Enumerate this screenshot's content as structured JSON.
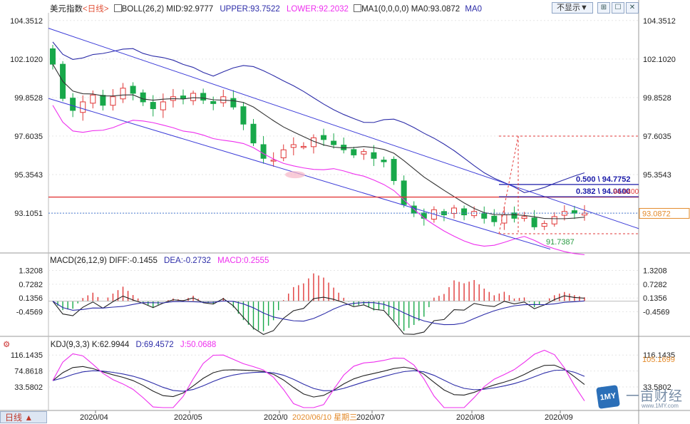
{
  "chart_data": {
    "type": "candlestick",
    "instrument": "美元指数",
    "period_tag": "<日线>",
    "indicators": {
      "boll": {
        "label": "BOLL(26,2)",
        "mid": "MID:92.9777",
        "upper": "UPPER:93.7522",
        "lower": "LOWER:92.2032"
      },
      "ma": {
        "label": "MA1(0,0,0,0)",
        "ma0": "MA0:93.0872",
        "ma0_short": "MA0"
      }
    },
    "toolbar": {
      "hide_label": "不显示▼",
      "btn1": "⊞",
      "btn2": "☐",
      "btn3": "✕"
    },
    "price_axis": {
      "ticks": [
        "104.3512",
        "102.1020",
        "99.8528",
        "97.6035",
        "95.3543",
        "93.1051"
      ],
      "tick_values": [
        104.3512,
        102.102,
        99.8528,
        97.6035,
        95.3543,
        93.1051
      ],
      "ylim": [
        90.9,
        104.8
      ]
    },
    "current_price": "93.0872",
    "annotations": {
      "fib_0500": "0.500 \\ 94.7752",
      "fib_0382": "0.382 \\ 94.0600",
      "overlap": "94.0400",
      "low_label": "91.7387"
    },
    "x_axis": {
      "labels": [
        "2020/04",
        "2020/05",
        "2020/0",
        "2020/07",
        "2020/08",
        "2020/09"
      ],
      "crosshair_label": "2020/06/10 星期三"
    },
    "close_path": [
      101.8,
      99.8,
      99.1,
      99.6,
      100.0,
      99.4,
      99.9,
      100.4,
      100.1,
      99.6,
      99.2,
      99.6,
      99.9,
      99.8,
      100.1,
      99.7,
      99.5,
      99.9,
      99.3,
      98.3,
      97.2,
      96.3,
      96.2,
      96.8,
      97.1,
      97.0,
      97.5,
      97.4,
      97.1,
      96.8,
      96.5,
      96.7,
      96.3,
      96.1,
      95.0,
      93.6,
      93.1,
      92.8,
      93.3,
      93.0,
      93.4,
      93.0,
      93.2,
      92.8,
      92.6,
      93.0,
      92.8,
      92.9,
      92.3,
      92.5,
      92.9,
      93.2,
      93.1,
      93.1
    ],
    "macd": {
      "label": "MACD(26,12,9)",
      "diff": "DIFF:-0.1455",
      "dea": "DEA:-0.2732",
      "macd": "MACD:0.2555",
      "ticks": [
        "1.3208",
        "0.7282",
        "0.1356",
        "-0.4569"
      ],
      "tick_values": [
        1.3208,
        0.7282,
        0.1356,
        -0.4569
      ],
      "ylim": [
        -1.45,
        1.55
      ]
    },
    "kdj": {
      "label": "KDJ(9,3,3)",
      "k": "K:62.9944",
      "d": "D:69.4572",
      "j": "J:50.0688",
      "ticks": [
        "116.1435",
        "74.8618",
        "33.5802"
      ],
      "tick_values": [
        116.1435,
        74.8618,
        33.5802
      ],
      "ylim": [
        -20,
        135
      ],
      "j_now": "105.1699"
    },
    "period_label": "日线 ▲"
  },
  "logo": {
    "mark": "1MY",
    "name": "一亩财经",
    "url": "www.1MY.com"
  },
  "colors": {
    "up": "#e03838",
    "down": "#18a84a",
    "mid": "#333333",
    "upper": "#2c2ca8",
    "lower": "#ee2fee",
    "channel": "#3b3bd8",
    "level": "#e23a3a",
    "fib": "#1a1aa8",
    "axis": "#777777"
  }
}
